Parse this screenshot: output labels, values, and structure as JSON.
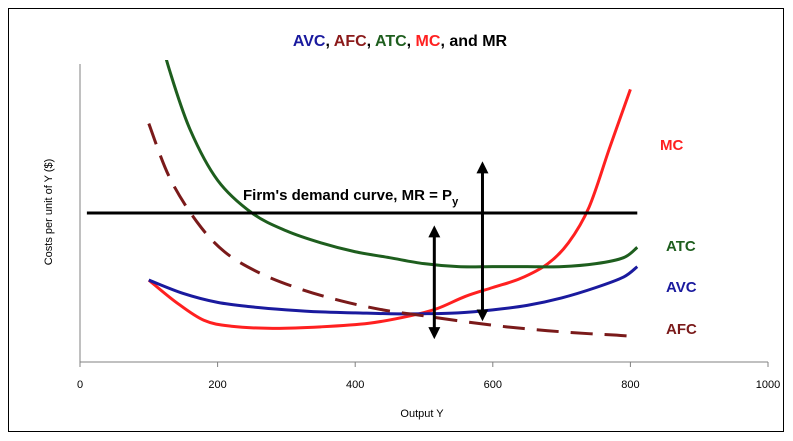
{
  "chart_data": {
    "type": "line",
    "title_parts": [
      {
        "text": "AVC",
        "color": "#1a1a9e"
      },
      {
        "text": ", ",
        "color": "#000000"
      },
      {
        "text": "AFC",
        "color": "#8b1a1a"
      },
      {
        "text": ", ",
        "color": "#000000"
      },
      {
        "text": "ATC",
        "color": "#1e5e1e"
      },
      {
        "text": ", ",
        "color": "#000000"
      },
      {
        "text": "MC",
        "color": "#ff2020"
      },
      {
        "text": ", and MR",
        "color": "#000000"
      }
    ],
    "xlabel": "Output Y",
    "ylabel": "Costs per unit of Y ($)",
    "xlim": [
      0,
      1000
    ],
    "ylim": [
      0,
      100
    ],
    "xticks": [
      "0",
      "200",
      "400",
      "600",
      "800",
      "1000"
    ],
    "grid": false,
    "series": [
      {
        "name": "MC",
        "color": "#ff2020",
        "dashed": false,
        "x": [
          100,
          140,
          180,
          220,
          280,
          350,
          420,
          480,
          520,
          560,
          600,
          640,
          680,
          710,
          740,
          770,
          800
        ],
        "y": [
          27.5,
          20,
          14,
          12,
          11.3,
          11.8,
          13,
          15.5,
          18,
          22,
          25,
          28,
          33,
          40,
          52,
          72,
          91.5
        ]
      },
      {
        "name": "ATC",
        "color": "#1e5e1e",
        "dashed": false,
        "x": [
          110,
          130,
          160,
          200,
          250,
          300,
          350,
          400,
          450,
          500,
          550,
          600,
          650,
          700,
          750,
          790,
          810
        ],
        "y": [
          115,
          98,
          78,
          61,
          50,
          44,
          40,
          37,
          35,
          33,
          32,
          32,
          32,
          32,
          33,
          35,
          38.5
        ]
      },
      {
        "name": "AVC",
        "color": "#1a1a9e",
        "dashed": false,
        "x": [
          100,
          150,
          200,
          250,
          300,
          350,
          400,
          450,
          500,
          550,
          600,
          650,
          700,
          750,
          790,
          810
        ],
        "y": [
          27.5,
          23,
          20,
          18.5,
          17.5,
          16.8,
          16.5,
          16.2,
          16.2,
          16.5,
          17.5,
          19,
          21.5,
          25,
          28.5,
          32
        ]
      },
      {
        "name": "AFC",
        "color": "#7a1a1a",
        "dashed": true,
        "x": [
          100,
          130,
          170,
          210,
          260,
          320,
          380,
          440,
          500,
          560,
          620,
          680,
          740,
          780,
          810
        ],
        "y": [
          80,
          62,
          47,
          37,
          30,
          24.5,
          20.5,
          17.5,
          15.5,
          13.5,
          11.8,
          10.5,
          9.5,
          9,
          8.5
        ]
      },
      {
        "name": "MR",
        "color": "#000000",
        "dashed": false,
        "x": [
          10,
          810
        ],
        "y": [
          50,
          50
        ]
      }
    ],
    "curve_labels": [
      {
        "text": "MC",
        "color": "#ff2020"
      },
      {
        "text": "ATC",
        "color": "#1e5e1e"
      },
      {
        "text": "AVC",
        "color": "#1a1a9e"
      },
      {
        "text": "AFC",
        "color": "#7a1a1a"
      }
    ],
    "annotation": {
      "text_main": "Firm's demand curve, MR = P",
      "text_sub": "y"
    },
    "arrows": [
      {
        "x": 515,
        "y_top": 44.5,
        "y_bottom": 9
      },
      {
        "x": 585,
        "y_top": 66,
        "y_bottom": 15
      }
    ]
  }
}
